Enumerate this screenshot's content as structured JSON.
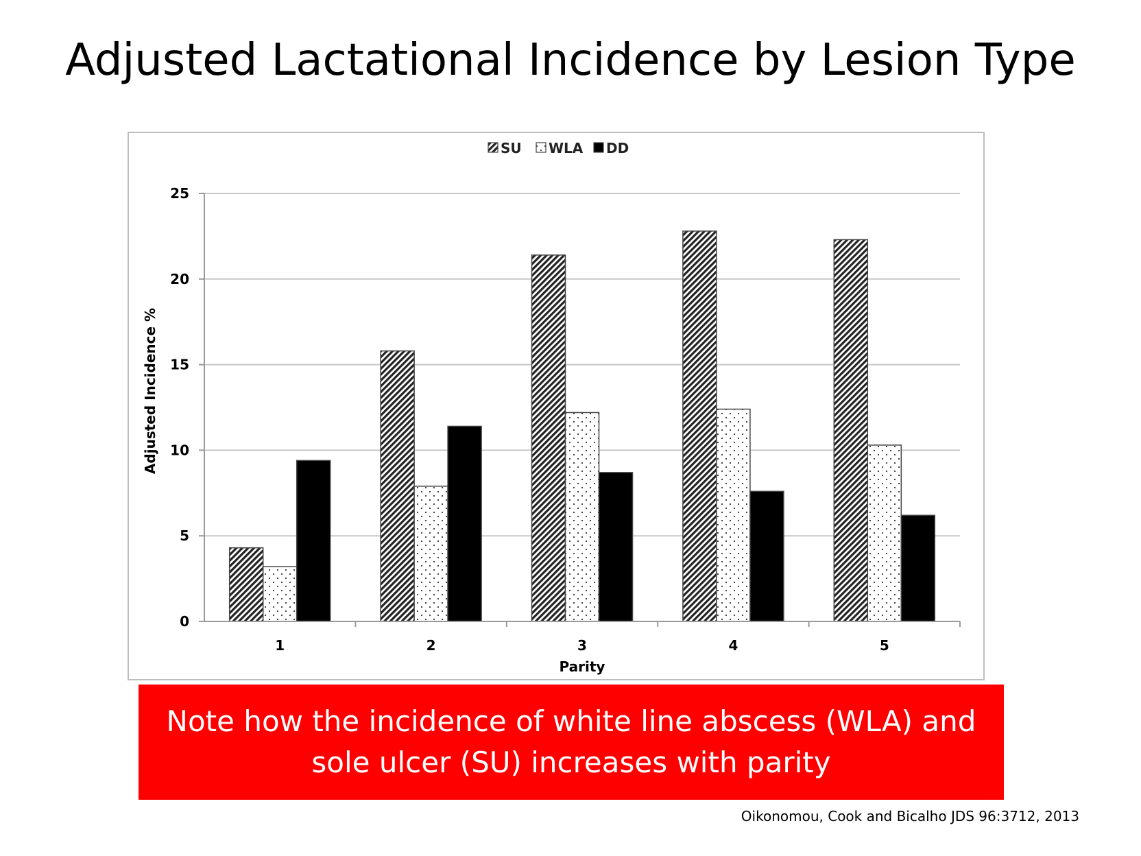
{
  "slide": {
    "title": "Adjusted Lactational Incidence by Lesion Type",
    "note": "Note how the incidence of white line abscess (WLA) and sole ulcer (SU) increases with parity",
    "citation": "Oikonomou, Cook and Bicalho JDS 96:3712, 2013",
    "note_color": "#ff0000"
  },
  "chart_data": {
    "type": "bar",
    "title": "",
    "xlabel": "Parity",
    "ylabel": "Adjusted Incidence %",
    "categories": [
      "1",
      "2",
      "3",
      "4",
      "5"
    ],
    "series": [
      {
        "name": "SU",
        "fill": "diagonal-hatch",
        "values": [
          4.3,
          15.8,
          21.4,
          22.8,
          22.3
        ]
      },
      {
        "name": "WLA",
        "fill": "dotted",
        "values": [
          3.2,
          7.9,
          12.2,
          12.4,
          10.3
        ]
      },
      {
        "name": "DD",
        "fill": "solid-black",
        "values": [
          9.4,
          11.4,
          8.7,
          7.6,
          6.2
        ]
      }
    ],
    "ylim": [
      0,
      25
    ],
    "yticks": [
      0,
      5,
      10,
      15,
      20,
      25
    ],
    "grid": true,
    "legend_position": "top-center"
  }
}
